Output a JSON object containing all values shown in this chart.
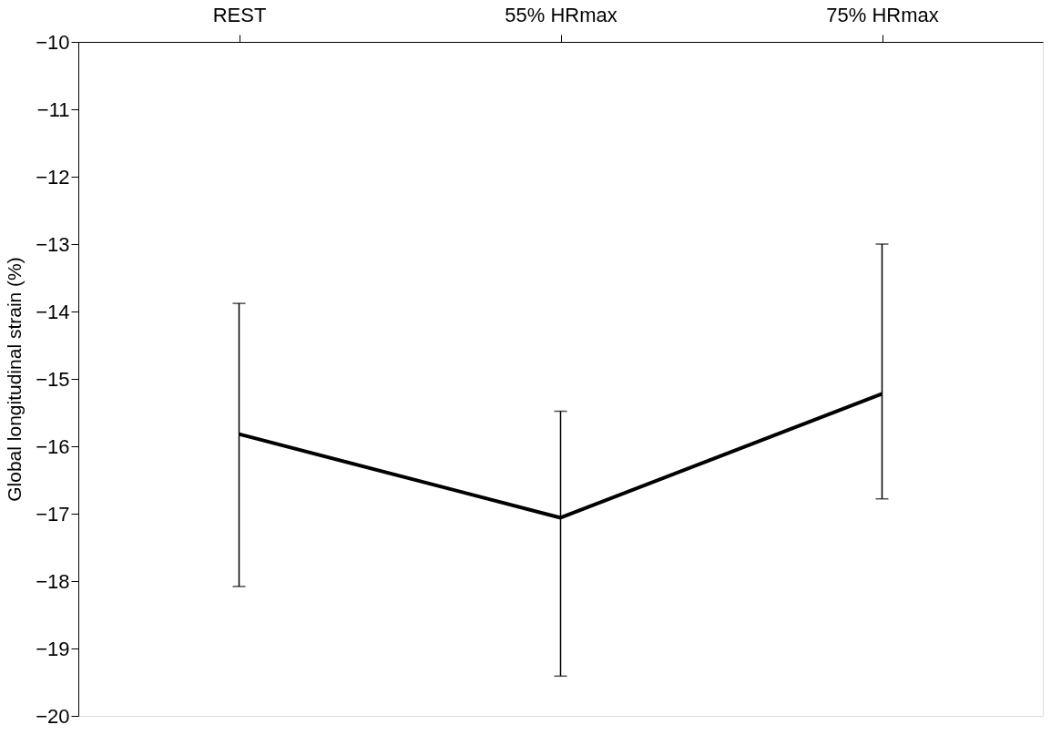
{
  "chart_data": {
    "type": "line",
    "ylabel": "Global longitudinal strain (%)",
    "categories": [
      "REST",
      "55% HRmax",
      "75% HRmax"
    ],
    "series": [
      {
        "color": "#000000",
        "values": [
          -15.82,
          -17.06,
          -15.22
        ],
        "errors": [
          [
            -18.08,
            -13.88
          ],
          [
            -19.41,
            -15.48
          ],
          [
            -16.78,
            -13.0
          ]
        ]
      }
    ],
    "ylim": [
      -20,
      -10
    ],
    "yticks": [
      -20,
      -19,
      -18,
      -17,
      -16,
      -15,
      -14,
      -13,
      -12,
      -11,
      -10
    ],
    "grid": false,
    "marker": "none",
    "line_style": "solid"
  }
}
